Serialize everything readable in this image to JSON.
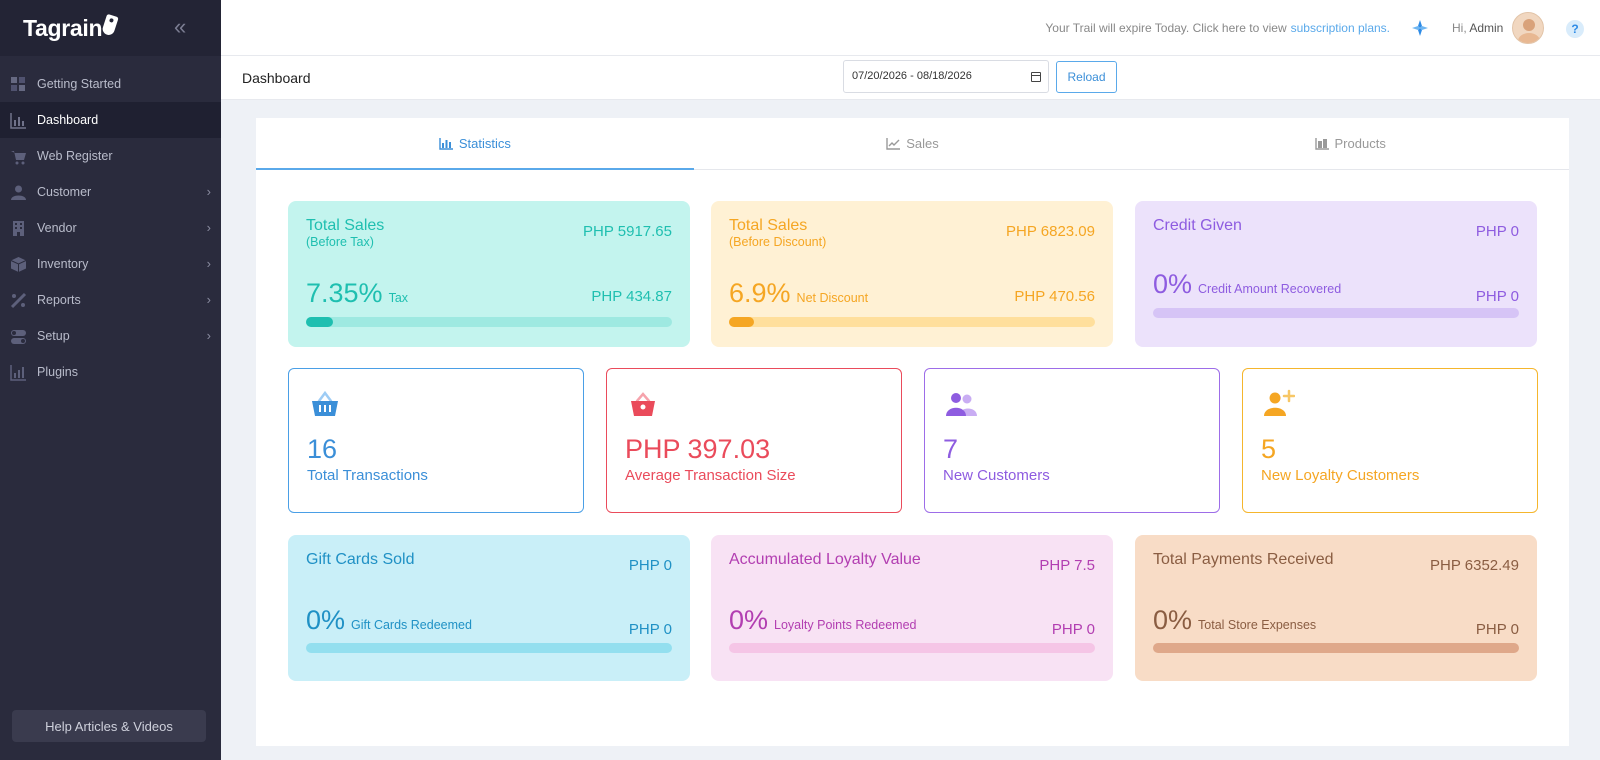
{
  "app": {
    "logo": "Tagrain"
  },
  "sidebar": {
    "items": [
      {
        "label": "Getting Started"
      },
      {
        "label": "Dashboard"
      },
      {
        "label": "Web Register"
      },
      {
        "label": "Customer"
      },
      {
        "label": "Vendor"
      },
      {
        "label": "Inventory"
      },
      {
        "label": "Reports"
      },
      {
        "label": "Setup"
      },
      {
        "label": "Plugins"
      }
    ],
    "help_label": "Help Articles & Videos"
  },
  "topbar": {
    "trial_text": "Your Trail will expire Today. Click here to view",
    "trial_link": "subscription plans.",
    "greeting": "Hi,",
    "user": "Admin"
  },
  "header": {
    "title": "Dashboard",
    "date_range": "07/20/2026 - 08/18/2026",
    "reload_label": "Reload"
  },
  "tabs": [
    {
      "label": "Statistics"
    },
    {
      "label": "Sales"
    },
    {
      "label": "Products"
    }
  ],
  "stats": {
    "total_sales_before_tax": {
      "title": "Total Sales",
      "sub": "(Before Tax)",
      "value": "PHP 5917.65",
      "percent": "7.35%",
      "percent_label": "Tax",
      "value2": "PHP 434.87",
      "fill_fraction": 0.0735
    },
    "total_sales_before_discount": {
      "title": "Total Sales",
      "sub": "(Before Discount)",
      "value": "PHP 6823.09",
      "percent": "6.9%",
      "percent_label": "Net Discount",
      "value2": "PHP 470.56",
      "fill_fraction": 0.069
    },
    "credit_given": {
      "title": "Credit Given",
      "value": "PHP 0",
      "percent": "0%",
      "percent_label": "Credit Amount Recovered",
      "value2": "PHP 0",
      "fill_fraction": 0
    },
    "gift_cards": {
      "title": "Gift Cards Sold",
      "value": "PHP 0",
      "percent": "0%",
      "percent_label": "Gift Cards Redeemed",
      "value2": "PHP 0",
      "fill_fraction": 0
    },
    "loyalty": {
      "title": "Accumulated Loyalty Value",
      "value": "PHP 7.5",
      "percent": "0%",
      "percent_label": "Loyalty Points Redeemed",
      "value2": "PHP 0",
      "fill_fraction": 0
    },
    "payments": {
      "title": "Total Payments Received",
      "value": "PHP 6352.49",
      "percent": "0%",
      "percent_label": "Total Store Expenses",
      "value2": "PHP 0",
      "fill_fraction": 0
    }
  },
  "kpis": {
    "transactions": {
      "value": "16",
      "label": "Total Transactions",
      "icon": "basket-icon"
    },
    "avg_size": {
      "value": "PHP 397.03",
      "label": "Average Transaction Size",
      "icon": "bag-icon"
    },
    "new_customers": {
      "value": "7",
      "label": "New Customers",
      "icon": "users-icon"
    },
    "loyalty_customers": {
      "value": "5",
      "label": "New Loyalty Customers",
      "icon": "user-plus-icon"
    }
  },
  "colors": {
    "sidebar_bg": "#2a2b3d",
    "accent_blue": "#3b8fd8",
    "teal": "#1fbfb0",
    "orange": "#f5a623",
    "purple": "#8e5ce0",
    "red": "#ea4b5b",
    "sky": "#2091c5",
    "magenta": "#b23eb1",
    "brown": "#8a5d42"
  }
}
